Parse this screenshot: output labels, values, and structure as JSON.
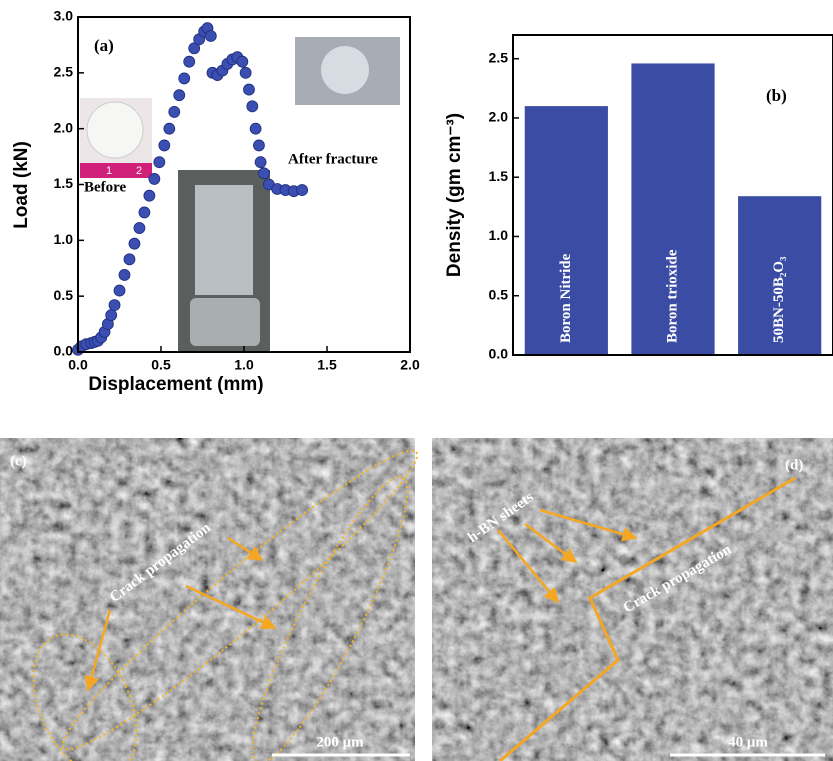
{
  "chart_data": [
    {
      "type": "scatter",
      "x_label": "Displacement (mm)",
      "y_label": "Load (kN)",
      "color": "#3b4fb3",
      "xlim": [
        0,
        2.0
      ],
      "ylim": [
        0,
        3.0
      ],
      "xticks": [
        {
          "value": 0,
          "label": "0.0"
        },
        {
          "value": 0.5,
          "label": "0.5"
        },
        {
          "value": 1.0,
          "label": "1.0"
        },
        {
          "value": 1.5,
          "label": "1.5"
        },
        {
          "value": 2.0,
          "label": "2.0"
        }
      ],
      "yticks": [
        {
          "value": 0,
          "label": "0.0"
        },
        {
          "value": 0.5,
          "label": "0.5"
        },
        {
          "value": 1.0,
          "label": "1.0"
        },
        {
          "value": 1.5,
          "label": "1.5"
        },
        {
          "value": 2.0,
          "label": "2.0"
        },
        {
          "value": 2.5,
          "label": "2.5"
        },
        {
          "value": 3.0,
          "label": "3.0"
        }
      ],
      "x": [
        0.0,
        0.02,
        0.05,
        0.08,
        0.1,
        0.12,
        0.14,
        0.16,
        0.18,
        0.2,
        0.22,
        0.25,
        0.28,
        0.31,
        0.34,
        0.37,
        0.4,
        0.43,
        0.46,
        0.49,
        0.52,
        0.55,
        0.58,
        0.61,
        0.64,
        0.67,
        0.7,
        0.73,
        0.76,
        0.78,
        0.8,
        0.81,
        0.84,
        0.87,
        0.9,
        0.93,
        0.96,
        0.99,
        1.01,
        1.03,
        1.05,
        1.07,
        1.09,
        1.1,
        1.12,
        1.15,
        1.2,
        1.25,
        1.3,
        1.35
      ],
      "values": [
        0.02,
        0.05,
        0.07,
        0.08,
        0.09,
        0.1,
        0.13,
        0.18,
        0.25,
        0.33,
        0.42,
        0.55,
        0.69,
        0.83,
        0.97,
        1.11,
        1.25,
        1.4,
        1.55,
        1.7,
        1.85,
        2.0,
        2.15,
        2.3,
        2.45,
        2.6,
        2.72,
        2.8,
        2.87,
        2.9,
        2.83,
        2.5,
        2.48,
        2.52,
        2.58,
        2.62,
        2.64,
        2.6,
        2.5,
        2.35,
        2.2,
        2.0,
        1.85,
        1.7,
        1.6,
        1.5,
        1.46,
        1.45,
        1.44,
        1.45
      ],
      "annotations": [
        "(a)",
        "Before",
        "After fracture"
      ],
      "ruler_labels": [
        "1",
        "2"
      ]
    },
    {
      "type": "bar",
      "y_label": "Density (gm cm⁻³)",
      "color": "#3a4ca3",
      "categories": [
        "Boron Nitride",
        "Boron trioxide",
        "50BN-50B₂O₃"
      ],
      "values": [
        2.1,
        2.46,
        1.34
      ],
      "ylim": [
        0,
        2.7
      ],
      "yticks": [
        {
          "value": 0,
          "label": "0.0"
        },
        {
          "value": 0.5,
          "label": "0.5"
        },
        {
          "value": 1.0,
          "label": "1.0"
        },
        {
          "value": 1.5,
          "label": "1.5"
        },
        {
          "value": 2.0,
          "label": "2.0"
        },
        {
          "value": 2.5,
          "label": "2.5"
        }
      ],
      "annotations": [
        "(b)"
      ]
    }
  ],
  "images": [
    {
      "label": "(c)",
      "annotation": "Crack propagation",
      "scale_bar": "200 μm"
    },
    {
      "label": "(d)",
      "annotations": [
        "h-BN sheets",
        "Crack propagation"
      ],
      "scale_bar": "40 μm"
    }
  ]
}
